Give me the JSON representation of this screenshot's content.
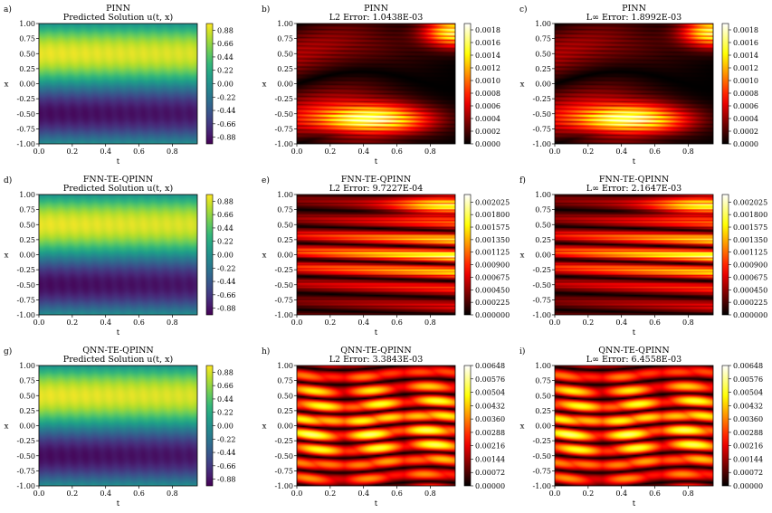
{
  "chart_data": [
    {
      "id": "a",
      "letter": "a)",
      "type": "heatmap",
      "kind": "solution",
      "title": [
        "PINN",
        "Predicted Solution u(t, x)"
      ],
      "xlabel": "t",
      "ylabel": "x",
      "xlim": [
        0,
        0.95
      ],
      "ylim": [
        -1,
        1
      ],
      "xticks": [
        "0.0",
        "0.2",
        "0.4",
        "0.6",
        "0.8"
      ],
      "yticks": [
        "-1.00",
        "-0.75",
        "-0.50",
        "-0.25",
        "0.00",
        "0.25",
        "0.50",
        "0.75",
        "1.00"
      ],
      "colormap": "viridis",
      "clim": [
        -0.99,
        0.99
      ],
      "cbar_ticks": [
        "0.88",
        "0.66",
        "0.44",
        "0.22",
        "0.00",
        "-0.22",
        "-0.44",
        "-0.66",
        "-0.88"
      ]
    },
    {
      "id": "b",
      "letter": "b)",
      "type": "heatmap",
      "kind": "error",
      "pattern": 1,
      "title": [
        "PINN",
        "L2 Error: 1.0438E-03"
      ],
      "xlabel": "t",
      "ylabel": "x",
      "xlim": [
        0,
        0.95
      ],
      "ylim": [
        -1,
        1
      ],
      "xticks": [
        "0.0",
        "0.2",
        "0.4",
        "0.6",
        "0.8"
      ],
      "yticks": [
        "-1.00",
        "-0.75",
        "-0.50",
        "-0.25",
        "0.00",
        "0.25",
        "0.50",
        "0.75",
        "1.00"
      ],
      "colormap": "hot",
      "clim": [
        0,
        0.0019
      ],
      "cbar_ticks": [
        "0.0018",
        "0.0016",
        "0.0014",
        "0.0012",
        "0.0010",
        "0.0008",
        "0.0006",
        "0.0004",
        "0.0002",
        "0.0000"
      ]
    },
    {
      "id": "c",
      "letter": "c)",
      "type": "heatmap",
      "kind": "error",
      "pattern": 1,
      "title": [
        "PINN",
        "L∞ Error: 1.8992E-03"
      ],
      "xlabel": "t",
      "ylabel": "x",
      "xlim": [
        0,
        0.95
      ],
      "ylim": [
        -1,
        1
      ],
      "xticks": [
        "0.0",
        "0.2",
        "0.4",
        "0.6",
        "0.8"
      ],
      "yticks": [
        "-1.00",
        "-0.75",
        "-0.50",
        "-0.25",
        "0.00",
        "0.25",
        "0.50",
        "0.75",
        "1.00"
      ],
      "colormap": "hot",
      "clim": [
        0,
        0.0019
      ],
      "cbar_ticks": [
        "0.0018",
        "0.0016",
        "0.0014",
        "0.0012",
        "0.0010",
        "0.0008",
        "0.0006",
        "0.0004",
        "0.0002",
        "0.0000"
      ]
    },
    {
      "id": "d",
      "letter": "d)",
      "type": "heatmap",
      "kind": "solution",
      "title": [
        "FNN-TE-QPINN",
        "Predicted Solution u(t, x)"
      ],
      "xlabel": "t",
      "ylabel": "x",
      "xlim": [
        0,
        0.95
      ],
      "ylim": [
        -1,
        1
      ],
      "xticks": [
        "0.0",
        "0.2",
        "0.4",
        "0.6",
        "0.8"
      ],
      "yticks": [
        "-1.00",
        "-0.75",
        "-0.50",
        "-0.25",
        "0.00",
        "0.25",
        "0.50",
        "0.75",
        "1.00"
      ],
      "colormap": "viridis",
      "clim": [
        -0.99,
        0.99
      ],
      "cbar_ticks": [
        "0.88",
        "0.66",
        "0.44",
        "0.22",
        "0.00",
        "-0.22",
        "-0.44",
        "-0.66",
        "-0.88"
      ]
    },
    {
      "id": "e",
      "letter": "e)",
      "type": "heatmap",
      "kind": "error",
      "pattern": 2,
      "title": [
        "FNN-TE-QPINN",
        "L2 Error: 9.7227E-04"
      ],
      "xlabel": "t",
      "ylabel": "x",
      "xlim": [
        0,
        0.95
      ],
      "ylim": [
        -1,
        1
      ],
      "xticks": [
        "0.0",
        "0.2",
        "0.4",
        "0.6",
        "0.8"
      ],
      "yticks": [
        "-1.00",
        "-0.75",
        "-0.50",
        "-0.25",
        "0.00",
        "0.25",
        "0.50",
        "0.75",
        "1.00"
      ],
      "colormap": "hot",
      "clim": [
        0,
        0.00216
      ],
      "cbar_ticks": [
        "0.002025",
        "0.001800",
        "0.001575",
        "0.001350",
        "0.001125",
        "0.000900",
        "0.000675",
        "0.000450",
        "0.000225",
        "0.000000"
      ]
    },
    {
      "id": "f",
      "letter": "f)",
      "type": "heatmap",
      "kind": "error",
      "pattern": 2,
      "title": [
        "FNN-TE-QPINN",
        "L∞ Error: 2.1647E-03"
      ],
      "xlabel": "t",
      "ylabel": "x",
      "xlim": [
        0,
        0.95
      ],
      "ylim": [
        -1,
        1
      ],
      "xticks": [
        "0.0",
        "0.2",
        "0.4",
        "0.6",
        "0.8"
      ],
      "yticks": [
        "-1.00",
        "-0.75",
        "-0.50",
        "-0.25",
        "0.00",
        "0.25",
        "0.50",
        "0.75",
        "1.00"
      ],
      "colormap": "hot",
      "clim": [
        0,
        0.00216
      ],
      "cbar_ticks": [
        "0.002025",
        "0.001800",
        "0.001575",
        "0.001350",
        "0.001125",
        "0.000900",
        "0.000675",
        "0.000450",
        "0.000225",
        "0.000000"
      ]
    },
    {
      "id": "g",
      "letter": "g)",
      "type": "heatmap",
      "kind": "solution",
      "title": [
        "QNN-TE-QPINN",
        "Predicted Solution u(t, x)"
      ],
      "xlabel": "t",
      "ylabel": "x",
      "xlim": [
        0,
        0.95
      ],
      "ylim": [
        -1,
        1
      ],
      "xticks": [
        "0.0",
        "0.2",
        "0.4",
        "0.6",
        "0.8"
      ],
      "yticks": [
        "-1.00",
        "-0.75",
        "-0.50",
        "-0.25",
        "0.00",
        "0.25",
        "0.50",
        "0.75",
        "1.00"
      ],
      "colormap": "viridis",
      "clim": [
        -0.99,
        0.99
      ],
      "cbar_ticks": [
        "0.88",
        "0.66",
        "0.44",
        "0.22",
        "0.00",
        "-0.22",
        "-0.44",
        "-0.66",
        "-0.88"
      ]
    },
    {
      "id": "h",
      "letter": "h)",
      "type": "heatmap",
      "kind": "error",
      "pattern": 3,
      "title": [
        "QNN-TE-QPINN",
        "L2 Error: 3.3843E-03"
      ],
      "xlabel": "t",
      "ylabel": "x",
      "xlim": [
        0,
        0.95
      ],
      "ylim": [
        -1,
        1
      ],
      "xticks": [
        "0.0",
        "0.2",
        "0.4",
        "0.6",
        "0.8"
      ],
      "yticks": [
        "-1.00",
        "-0.75",
        "-0.50",
        "-0.25",
        "0.00",
        "0.25",
        "0.50",
        "0.75",
        "1.00"
      ],
      "colormap": "hot",
      "clim": [
        0,
        0.00648
      ],
      "cbar_ticks": [
        "0.00648",
        "0.00576",
        "0.00504",
        "0.00432",
        "0.00360",
        "0.00288",
        "0.00216",
        "0.00144",
        "0.00072",
        "0.00000"
      ]
    },
    {
      "id": "i",
      "letter": "i)",
      "type": "heatmap",
      "kind": "error",
      "pattern": 3,
      "title": [
        "QNN-TE-QPINN",
        "L∞ Error: 6.4558E-03"
      ],
      "xlabel": "t",
      "ylabel": "x",
      "xlim": [
        0,
        0.95
      ],
      "ylim": [
        -1,
        1
      ],
      "xticks": [
        "0.0",
        "0.2",
        "0.4",
        "0.6",
        "0.8"
      ],
      "yticks": [
        "-1.00",
        "-0.75",
        "-0.50",
        "-0.25",
        "0.00",
        "0.25",
        "0.50",
        "0.75",
        "1.00"
      ],
      "colormap": "hot",
      "clim": [
        0,
        0.00648
      ],
      "cbar_ticks": [
        "0.00648",
        "0.00576",
        "0.00504",
        "0.00432",
        "0.00360",
        "0.00288",
        "0.00216",
        "0.00144",
        "0.00072",
        "0.00000"
      ]
    }
  ]
}
